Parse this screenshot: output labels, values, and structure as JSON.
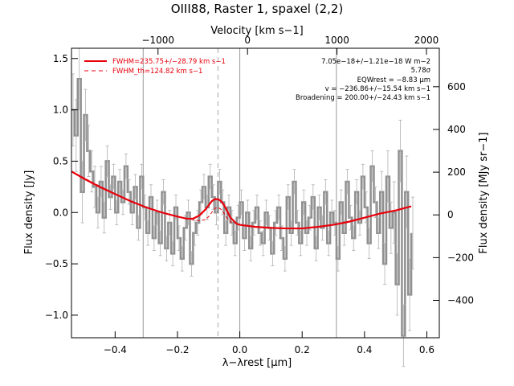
{
  "chart_data": {
    "type": "line",
    "title": "OIII88, Raster 1, spaxel (2,2)",
    "xlabel_bottom": "λ−λrest [μm]",
    "xlabel_top": "Velocity [km s−1]",
    "ylabel_left": "Flux density [Jy]",
    "ylabel_right": "Flux density [MJy sr−1]",
    "xlim": [
      -0.54,
      0.64
    ],
    "ylim": [
      -1.22,
      1.6
    ],
    "ylim_right": [
      -575,
      780
    ],
    "bottom_ticks": [
      "−0.4",
      "−0.2",
      "0.0",
      "0.2",
      "0.4",
      "0.6"
    ],
    "bottom_tick_values": [
      -0.4,
      -0.2,
      0.0,
      0.2,
      0.4,
      0.6
    ],
    "left_ticks": [
      "−1.0",
      "−0.5",
      "0.0",
      "0.5",
      "1.0",
      "1.5"
    ],
    "left_tick_values": [
      -1.0,
      -0.5,
      0.0,
      0.5,
      1.0,
      1.5
    ],
    "top_ticks": [
      "−1000",
      "0",
      "1000",
      "2000"
    ],
    "top_tick_values": [
      -1000,
      0,
      1000,
      2000
    ],
    "right_ticks": [
      "−400",
      "−200",
      "0",
      "200",
      "400",
      "600"
    ],
    "right_tick_values": [
      -400,
      -200,
      0,
      200,
      400,
      600
    ],
    "vlines_solid": [
      -0.31,
      0.0,
      0.31
    ],
    "vline_dashed": -0.07,
    "legend": [
      {
        "label": "FWHM=235.75+/−28.79 km s−1",
        "style": "solid",
        "color": "#e8000b"
      },
      {
        "label": "FWHM_th=124.82 km s−1",
        "style": "dashed",
        "color": "#e8000b"
      }
    ],
    "annotations": [
      "7.05e−18+/−1.21e−18 W m−2",
      "5.78σ",
      "EQWrest = −8.83 μm",
      "v = −236.86+/−15.54 km s−1",
      "Broadening = 200.00+/−24.43 km s−1"
    ],
    "series": [
      {
        "kind": "data",
        "color": "#909090",
        "x": [
          -0.54,
          -0.53,
          -0.52,
          -0.51,
          -0.5,
          -0.49,
          -0.48,
          -0.47,
          -0.46,
          -0.45,
          -0.44,
          -0.43,
          -0.42,
          -0.41,
          -0.4,
          -0.39,
          -0.38,
          -0.37,
          -0.36,
          -0.35,
          -0.34,
          -0.33,
          -0.32,
          -0.31,
          -0.3,
          -0.29,
          -0.28,
          -0.27,
          -0.26,
          -0.25,
          -0.24,
          -0.23,
          -0.22,
          -0.21,
          -0.2,
          -0.19,
          -0.18,
          -0.17,
          -0.16,
          -0.15,
          -0.14,
          -0.13,
          -0.12,
          -0.11,
          -0.1,
          -0.09,
          -0.08,
          -0.07,
          -0.06,
          -0.05,
          -0.04,
          -0.03,
          -0.02,
          -0.01,
          0.0,
          0.01,
          0.02,
          0.03,
          0.04,
          0.05,
          0.06,
          0.07,
          0.08,
          0.09,
          0.1,
          0.11,
          0.12,
          0.13,
          0.14,
          0.15,
          0.16,
          0.17,
          0.18,
          0.19,
          0.2,
          0.21,
          0.22,
          0.23,
          0.24,
          0.25,
          0.26,
          0.27,
          0.28,
          0.29,
          0.3,
          0.31,
          0.32,
          0.33,
          0.34,
          0.35,
          0.36,
          0.37,
          0.38,
          0.39,
          0.4,
          0.41,
          0.42,
          0.43,
          0.44,
          0.45,
          0.46,
          0.47,
          0.48,
          0.49,
          0.5,
          0.51,
          0.52,
          0.53,
          0.54,
          0.55
        ],
        "y": [
          1.0,
          0.75,
          1.3,
          0.2,
          0.95,
          0.6,
          0.4,
          0.25,
          0.0,
          0.3,
          -0.05,
          0.5,
          0.15,
          0.35,
          0.0,
          0.3,
          0.1,
          0.45,
          0.2,
          0.0,
          0.25,
          -0.15,
          0.35,
          0.05,
          -0.2,
          0.15,
          -0.25,
          0.0,
          -0.3,
          0.2,
          -0.35,
          -0.1,
          -0.4,
          0.05,
          -0.25,
          -0.45,
          -0.15,
          0.0,
          -0.5,
          -0.2,
          -0.1,
          0.1,
          0.25,
          0.05,
          0.35,
          0.15,
          0.0,
          0.3,
          0.1,
          -0.2,
          0.05,
          -0.1,
          -0.3,
          -0.05,
          0.1,
          -0.25,
          0.0,
          -0.35,
          -0.1,
          0.05,
          -0.2,
          -0.3,
          0.0,
          -0.15,
          -0.4,
          -0.1,
          0.05,
          -0.25,
          -0.45,
          0.15,
          -0.2,
          0.3,
          -0.1,
          -0.3,
          0.1,
          -0.2,
          -0.05,
          0.15,
          -0.35,
          0.05,
          -0.15,
          0.2,
          -0.3,
          0.0,
          -0.1,
          -0.45,
          0.1,
          -0.2,
          0.3,
          -0.05,
          -0.25,
          0.2,
          -0.1,
          0.35,
          0.05,
          -0.3,
          0.45,
          0.1,
          -0.2,
          0.2,
          -0.5,
          0.35,
          -0.15,
          0.0,
          -0.7,
          0.6,
          -1.2,
          0.2,
          -0.8,
          -0.2
        ],
        "yerr": [
          0.35,
          0.35,
          0.3,
          0.3,
          0.25,
          0.25,
          0.2,
          0.2,
          0.15,
          0.15,
          0.15,
          0.15,
          0.12,
          0.12,
          0.12,
          0.12,
          0.12,
          0.12,
          0.12,
          0.12,
          0.12,
          0.12,
          0.12,
          0.12,
          0.12,
          0.12,
          0.12,
          0.12,
          0.12,
          0.12,
          0.12,
          0.12,
          0.12,
          0.12,
          0.12,
          0.12,
          0.12,
          0.12,
          0.12,
          0.12,
          0.12,
          0.12,
          0.12,
          0.12,
          0.12,
          0.12,
          0.12,
          0.12,
          0.12,
          0.12,
          0.12,
          0.12,
          0.12,
          0.12,
          0.12,
          0.12,
          0.12,
          0.12,
          0.12,
          0.12,
          0.12,
          0.12,
          0.12,
          0.12,
          0.12,
          0.12,
          0.12,
          0.12,
          0.12,
          0.12,
          0.12,
          0.12,
          0.12,
          0.12,
          0.12,
          0.12,
          0.12,
          0.12,
          0.12,
          0.12,
          0.12,
          0.12,
          0.12,
          0.12,
          0.12,
          0.12,
          0.12,
          0.12,
          0.12,
          0.12,
          0.12,
          0.12,
          0.12,
          0.12,
          0.15,
          0.15,
          0.15,
          0.15,
          0.15,
          0.2,
          0.2,
          0.25,
          0.25,
          0.3,
          0.3,
          0.3,
          0.3,
          0.35,
          0.35,
          0.35
        ]
      },
      {
        "kind": "fit",
        "color": "#e8000b",
        "x": [
          -0.54,
          -0.5,
          -0.45,
          -0.4,
          -0.35,
          -0.3,
          -0.25,
          -0.2,
          -0.17,
          -0.15,
          -0.13,
          -0.11,
          -0.1,
          -0.09,
          -0.08,
          -0.07,
          -0.06,
          -0.05,
          -0.04,
          -0.03,
          -0.01,
          0.0,
          0.05,
          0.1,
          0.15,
          0.2,
          0.25,
          0.3,
          0.35,
          0.4,
          0.45,
          0.5,
          0.55
        ],
        "y": [
          0.4,
          0.33,
          0.25,
          0.18,
          0.11,
          0.05,
          0.0,
          -0.04,
          -0.06,
          -0.06,
          -0.03,
          0.03,
          0.07,
          0.11,
          0.13,
          0.13,
          0.11,
          0.07,
          0.01,
          -0.05,
          -0.11,
          -0.12,
          -0.14,
          -0.15,
          -0.155,
          -0.155,
          -0.14,
          -0.12,
          -0.09,
          -0.05,
          -0.01,
          0.02,
          0.06
        ]
      },
      {
        "kind": "fit_thermal",
        "color": "#e8000b",
        "x": [
          -0.54,
          -0.4,
          -0.3,
          -0.2,
          -0.15,
          -0.13,
          -0.11,
          -0.1,
          -0.09,
          -0.08,
          -0.07,
          -0.06,
          -0.05,
          -0.04,
          -0.03,
          -0.01,
          0.0,
          0.1,
          0.2,
          0.3,
          0.4,
          0.55
        ],
        "y": [
          0.4,
          0.18,
          0.05,
          -0.04,
          -0.07,
          -0.08,
          -0.07,
          -0.04,
          0.0,
          0.04,
          0.05,
          0.03,
          -0.01,
          -0.06,
          -0.09,
          -0.11,
          -0.12,
          -0.15,
          -0.155,
          -0.12,
          -0.05,
          0.06
        ]
      }
    ]
  }
}
